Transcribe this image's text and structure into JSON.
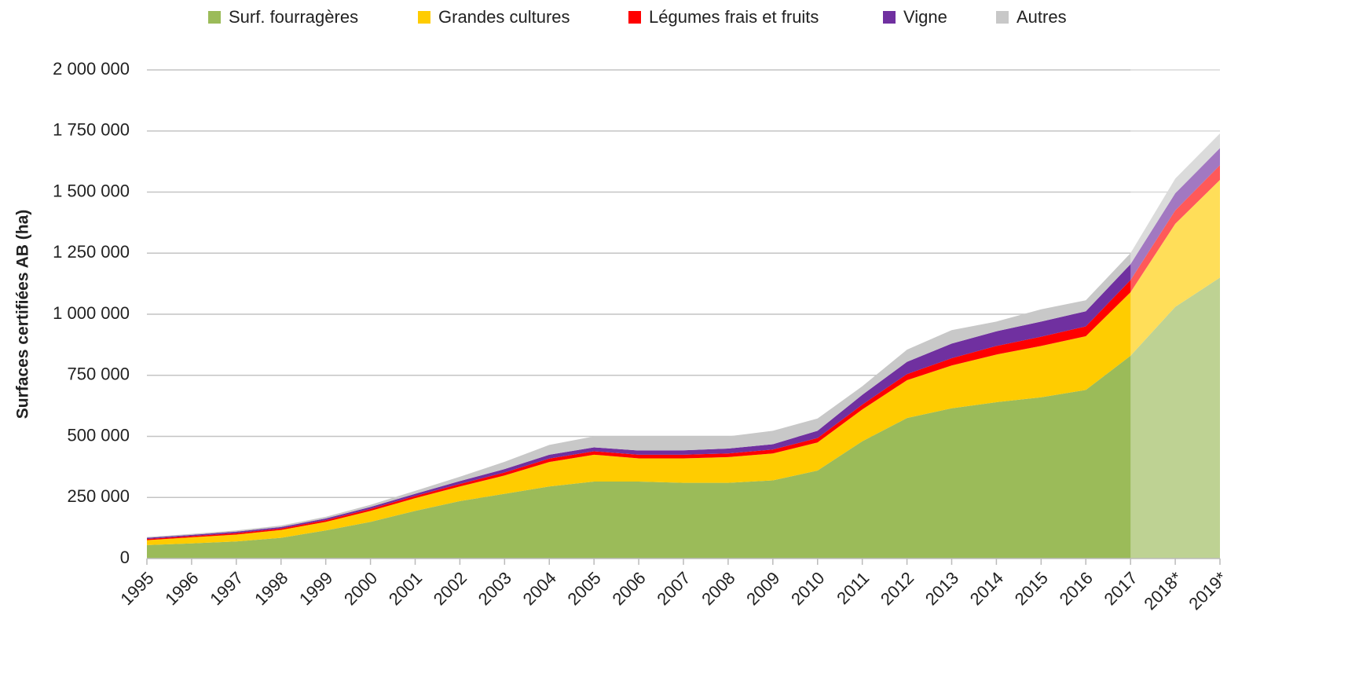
{
  "chart_data": {
    "type": "stacked_area",
    "y_label": "Surfaces certifiées AB (ha)",
    "categories": [
      "1995",
      "1996",
      "1997",
      "1998",
      "1999",
      "2000",
      "2001",
      "2002",
      "2003",
      "2004",
      "2005",
      "2006",
      "2007",
      "2008",
      "2009",
      "2010",
      "2011",
      "2012",
      "2013",
      "2014",
      "2015",
      "2016",
      "2017",
      "2018*",
      "2019*"
    ],
    "series": [
      {
        "name": "Surf. fourragères",
        "color": "#9bbb59",
        "values": [
          55000,
          62000,
          70000,
          85000,
          115000,
          150000,
          195000,
          235000,
          265000,
          295000,
          315000,
          315000,
          310000,
          310000,
          320000,
          360000,
          480000,
          575000,
          615000,
          640000,
          660000,
          690000,
          830000,
          1030000,
          1150000
        ]
      },
      {
        "name": "Grandes cultures",
        "color": "#ffcc00",
        "values": [
          20000,
          25000,
          28000,
          32000,
          35000,
          45000,
          52000,
          60000,
          75000,
          100000,
          110000,
          95000,
          100000,
          105000,
          110000,
          115000,
          130000,
          155000,
          175000,
          195000,
          210000,
          220000,
          260000,
          340000,
          400000
        ]
      },
      {
        "name": "Légumes frais et fruits",
        "color": "#ff0000",
        "values": [
          5000,
          5000,
          6000,
          6000,
          7000,
          8000,
          9000,
          10000,
          12000,
          14000,
          14000,
          15000,
          15000,
          15000,
          16000,
          18000,
          20000,
          25000,
          30000,
          35000,
          38000,
          40000,
          50000,
          55000,
          60000
        ]
      },
      {
        "name": "Vigne",
        "color": "#7030a0",
        "values": [
          5000,
          5000,
          6000,
          6000,
          7000,
          8000,
          9000,
          12000,
          14000,
          16000,
          16000,
          17000,
          18000,
          20000,
          22000,
          30000,
          40000,
          50000,
          60000,
          60000,
          62000,
          62000,
          65000,
          70000,
          70000
        ]
      },
      {
        "name": "Autres",
        "color": "#c8c8c8",
        "values": [
          3000,
          4000,
          5000,
          6000,
          7000,
          9000,
          12000,
          18000,
          30000,
          40000,
          45000,
          58000,
          57000,
          50000,
          55000,
          50000,
          35000,
          50000,
          55000,
          40000,
          50000,
          45000,
          45000,
          60000,
          60000
        ]
      }
    ],
    "ylim": [
      0,
      2000000
    ],
    "yticks": [
      0,
      {
        "value": 250000,
        "label": "250 000"
      },
      {
        "value": 500000,
        "label": "500 000"
      },
      {
        "value": 750000,
        "label": "750 000"
      },
      {
        "value": 1000000,
        "label": "1 000 000"
      },
      {
        "value": 1250000,
        "label": "1 250 000"
      },
      {
        "value": 1500000,
        "label": "1 500 000"
      },
      {
        "value": 1750000,
        "label": "1 750 000"
      },
      {
        "value": 2000000,
        "label": "2 000 000"
      }
    ],
    "grid": true,
    "legend": "top"
  }
}
